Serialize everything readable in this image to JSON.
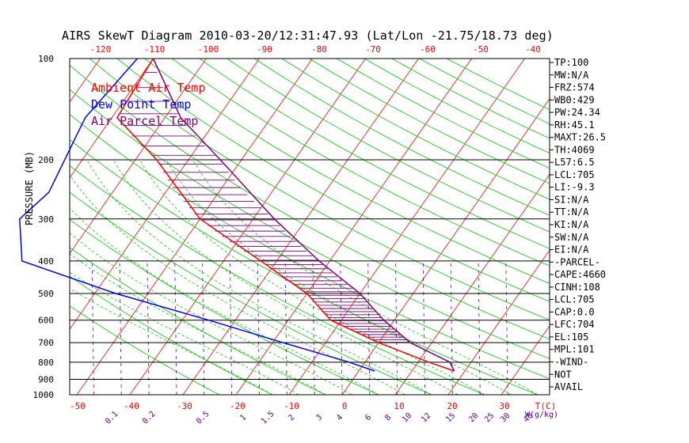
{
  "chart_data": {
    "type": "line",
    "title": "AIRS SkewT Diagram 2010-03-20/12:31:47.93 (Lat/Lon -21.75/18.73 deg)",
    "ylabel": "PRESSURE (MB)",
    "xlabel_bottom_unit": "T(C)",
    "xlabel_bottom_mixing_unit": "W(g/kg)",
    "top_temperature_ticks": [
      "-120",
      "-110",
      "-100",
      "-90",
      "-80",
      "-70",
      "-60",
      "-50",
      "-40"
    ],
    "bottom_temperature_ticks": [
      "-50",
      "-40",
      "-30",
      "-20",
      "-10",
      "0",
      "10",
      "20",
      "30"
    ],
    "pressure_ticks": [
      "100",
      "200",
      "300",
      "400",
      "500",
      "600",
      "700",
      "800",
      "900",
      "1000"
    ],
    "mixing_ratio_labels": [
      "0.1",
      "0.2",
      "0.5",
      "1",
      "1.5",
      "2",
      "3",
      "4",
      "6",
      "8",
      "10",
      "12",
      "15",
      "20",
      "25",
      "30",
      "40"
    ],
    "legend": [
      {
        "label": "Ambient Air Temp",
        "color": "#ff0000"
      },
      {
        "label": "Dew Point Temp",
        "color": "#0000ff"
      },
      {
        "label": "Air Parcel Temp",
        "color": "#800080"
      }
    ],
    "series": [
      {
        "name": "Ambient Air Temp",
        "color": "#ff0000",
        "points": [
          [
            100,
            -80
          ],
          [
            150,
            -79
          ],
          [
            200,
            -66
          ],
          [
            300,
            -50
          ],
          [
            400,
            -33
          ],
          [
            500,
            -20
          ],
          [
            600,
            -12
          ],
          [
            700,
            0
          ],
          [
            800,
            12
          ],
          [
            850,
            18
          ]
        ]
      },
      {
        "name": "Dew Point Temp",
        "color": "#0000ff",
        "points": [
          [
            100,
            -83
          ],
          [
            150,
            -85
          ],
          [
            250,
            -82
          ],
          [
            300,
            -84
          ],
          [
            400,
            -78
          ],
          [
            500,
            -56
          ],
          [
            600,
            -35
          ],
          [
            700,
            -18
          ],
          [
            800,
            -3
          ],
          [
            850,
            3
          ]
        ]
      },
      {
        "name": "Air Parcel Temp",
        "color": "#800080",
        "points": [
          [
            100,
            -80
          ],
          [
            150,
            -67
          ],
          [
            200,
            -54
          ],
          [
            300,
            -36
          ],
          [
            400,
            -22
          ],
          [
            500,
            -10
          ],
          [
            600,
            -2
          ],
          [
            700,
            6
          ],
          [
            800,
            16
          ],
          [
            850,
            18
          ]
        ]
      }
    ],
    "indices": [
      "TP:100",
      "MW:N/A",
      "FRZ:574",
      "WB0:429",
      "PW:24.34",
      "RH:45.1",
      "MAXT:26.5",
      "TH:4069",
      "L57:6.5",
      "LCL:705",
      "LI:-9.3",
      "SI:N/A",
      "TT:N/A",
      "KI:N/A",
      "SW:N/A",
      "EI:N/A",
      "-PARCEL-",
      "CAPE:4660",
      "CINH:108",
      "LCL:705",
      "CAP:0.0",
      "LFC:704",
      "EL:105",
      "MPL:101",
      "-WIND-",
      "NOT",
      "AVAIL"
    ]
  }
}
